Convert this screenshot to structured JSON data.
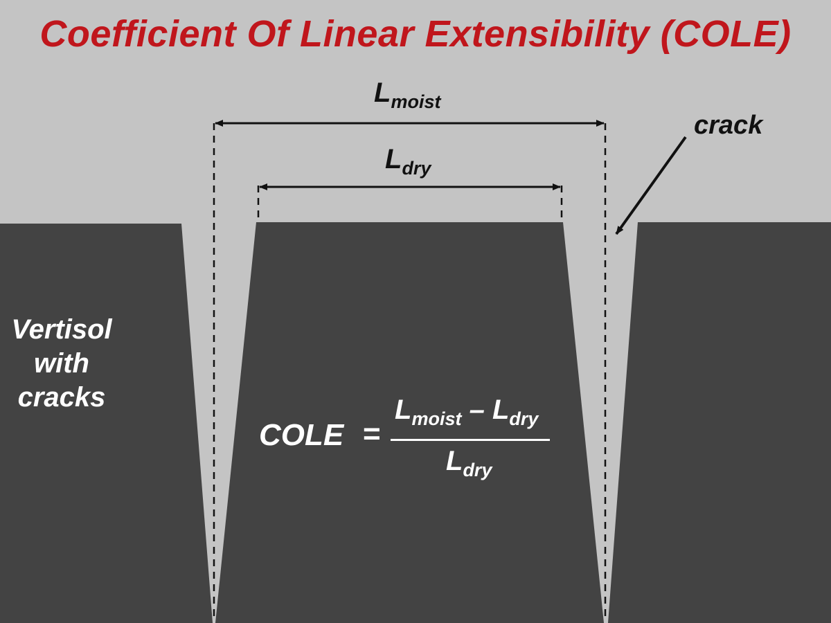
{
  "title": "Coefficient Of Linear Extensibility (COLE)",
  "labels": {
    "l_moist": {
      "main": "L",
      "sub": "moist"
    },
    "l_dry": {
      "main": "L",
      "sub": "dry"
    },
    "crack": "crack",
    "vertisol": [
      "Vertisol",
      "with",
      "cracks"
    ]
  },
  "formula": {
    "lhs": "COLE",
    "equals": "=",
    "numerator": {
      "a_main": "L",
      "a_sub": "moist",
      "minus": " – ",
      "b_main": "L",
      "b_sub": "dry"
    },
    "denominator": {
      "main": "L",
      "sub": "dry"
    }
  },
  "colors": {
    "background": "#c4c4c4",
    "soil": "#434343",
    "title": "#c0161c",
    "arrow": "#111111",
    "formula_text": "#ffffff"
  }
}
